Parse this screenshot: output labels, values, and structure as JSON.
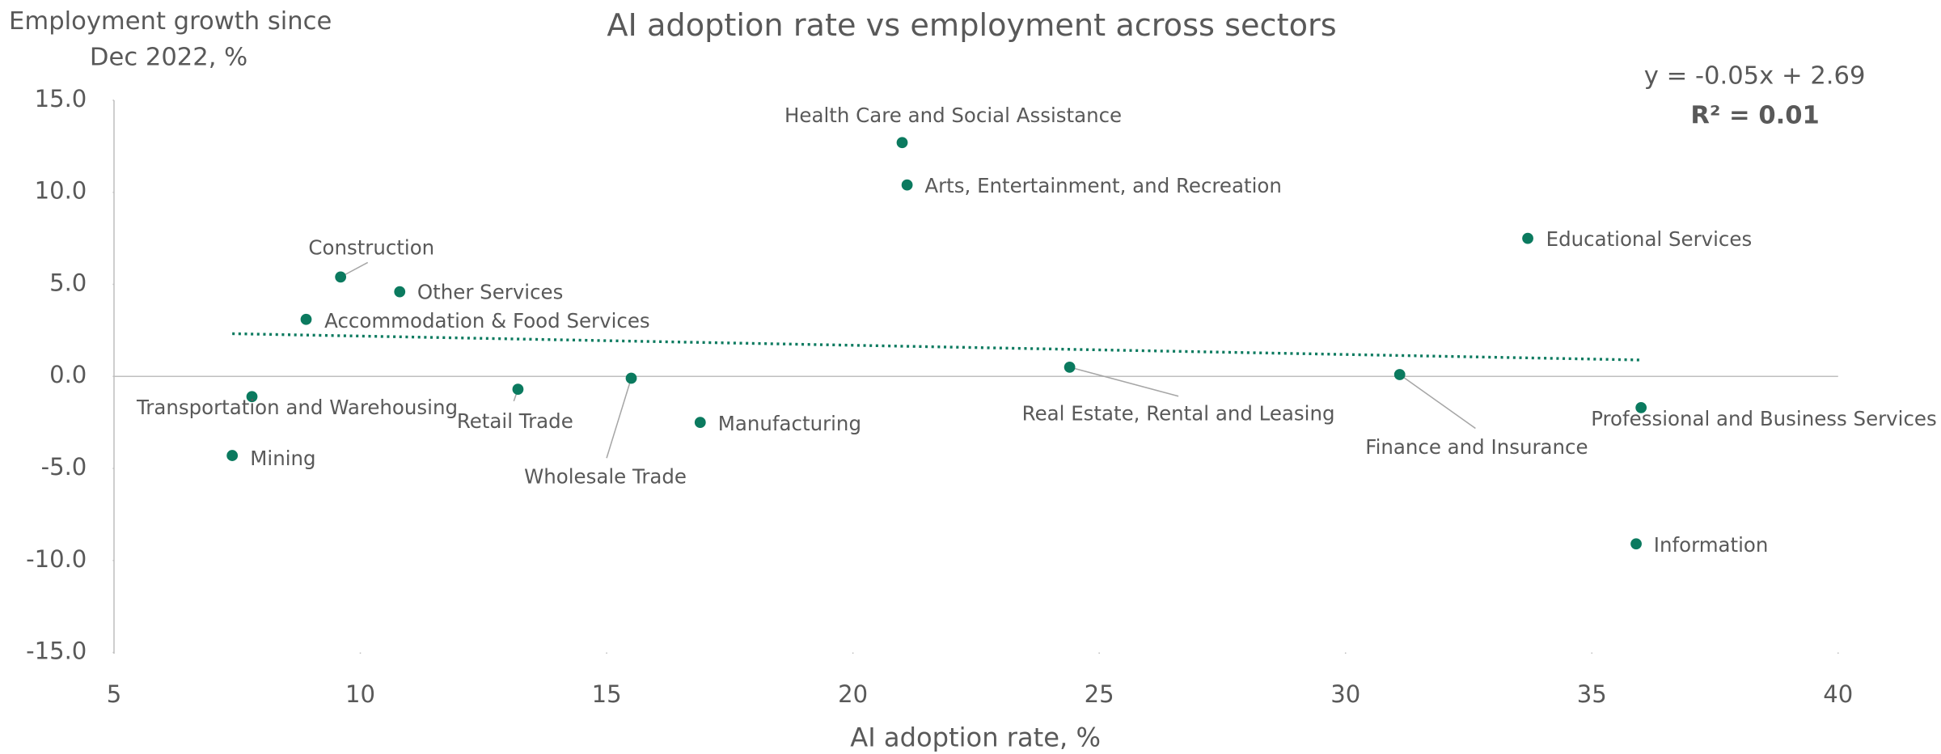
{
  "chart_data": {
    "type": "scatter",
    "title": "AI adoption rate vs employment across sectors",
    "x_label": "AI adoption rate, %",
    "y_label": [
      "Employment growth since",
      "Dec 2022, %"
    ],
    "equation": "y = -0.05x + 2.69",
    "r_squared": "R² = 0.01",
    "trendline": {
      "slope": -0.05,
      "intercept": 2.69
    },
    "color": "#0b7a5f",
    "labels": [
      "Health Care and Social Assistance",
      "Arts, Entertainment, and Recreation",
      "Educational Services",
      "Construction",
      "Other Services",
      "Accommodation & Food Services",
      "Transportation and Warehousing",
      "Mining",
      "Retail Trade",
      "Wholesale Trade",
      "Manufacturing",
      "Real Estate, Rental and Leasing",
      "Finance and Insurance",
      "Professional and Business Services",
      "Information"
    ],
    "x": [
      21.0,
      21.1,
      33.7,
      9.6,
      10.8,
      8.9,
      7.8,
      7.4,
      13.2,
      15.5,
      16.9,
      24.4,
      31.1,
      36.0,
      35.9
    ],
    "values": [
      12.7,
      10.4,
      7.5,
      5.4,
      4.6,
      3.1,
      -1.1,
      -4.3,
      -0.7,
      -0.1,
      -2.5,
      0.5,
      0.1,
      -1.7,
      -9.1
    ],
    "xlim": [
      5,
      40
    ],
    "xticks": [
      5,
      10,
      15,
      20,
      25,
      30,
      35,
      40
    ],
    "ylim": [
      -15,
      15
    ],
    "yticks": [
      {
        "value": 15,
        "label": "15.0"
      },
      {
        "value": 10,
        "label": "10.0"
      },
      {
        "value": 5,
        "label": "5.0"
      },
      {
        "value": 0,
        "label": "0.0"
      },
      {
        "value": -5,
        "label": "-5.0"
      },
      {
        "value": -10,
        "label": "-10.0"
      },
      {
        "value": -15,
        "label": "-15.0"
      }
    ]
  }
}
